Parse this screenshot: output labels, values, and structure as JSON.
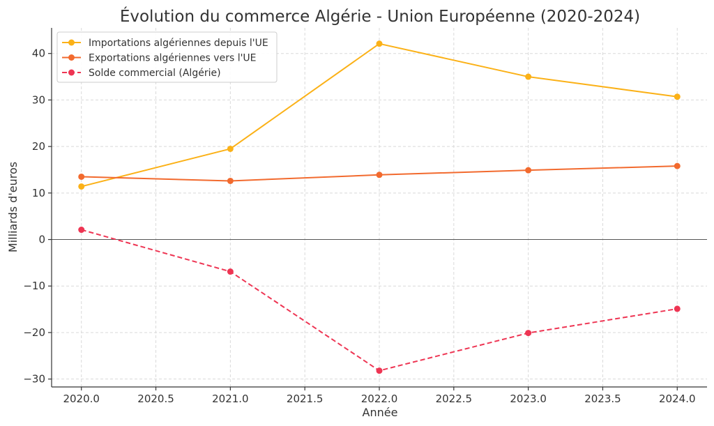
{
  "chart_data": {
    "type": "line",
    "title": "Évolution du commerce Algérie - Union Européenne (2020-2024)",
    "xlabel": "Année",
    "ylabel": "Milliards d'euros",
    "xlim": [
      2019.8,
      2024.2
    ],
    "ylim": [
      -31.7,
      45.5
    ],
    "xticks": [
      2020.0,
      2020.5,
      2021.0,
      2021.5,
      2022.0,
      2022.5,
      2023.0,
      2023.5,
      2024.0
    ],
    "xtick_labels": [
      "2020.0",
      "2020.5",
      "2021.0",
      "2021.5",
      "2022.0",
      "2022.5",
      "2023.0",
      "2023.5",
      "2024.0"
    ],
    "yticks": [
      -30,
      -20,
      -10,
      0,
      10,
      20,
      30,
      40
    ],
    "ytick_labels": [
      "−30",
      "−20",
      "−10",
      "0",
      "10",
      "20",
      "30",
      "40"
    ],
    "grid": true,
    "legend_position": "top-left",
    "x": [
      2020,
      2021,
      2022,
      2023,
      2024
    ],
    "series": [
      {
        "name": "Importations algériennes depuis l'UE",
        "color": "#fbb117",
        "dashed": false,
        "values": [
          11.4,
          19.5,
          42.1,
          35.0,
          30.7
        ]
      },
      {
        "name": "Exportations algériennes vers l'UE",
        "color": "#f26a2e",
        "dashed": false,
        "values": [
          13.5,
          12.6,
          13.9,
          14.9,
          15.8
        ]
      },
      {
        "name": "Solde commercial (Algérie)",
        "color": "#ee3553",
        "dashed": true,
        "values": [
          2.1,
          -6.9,
          -28.2,
          -20.1,
          -14.9
        ]
      }
    ]
  }
}
